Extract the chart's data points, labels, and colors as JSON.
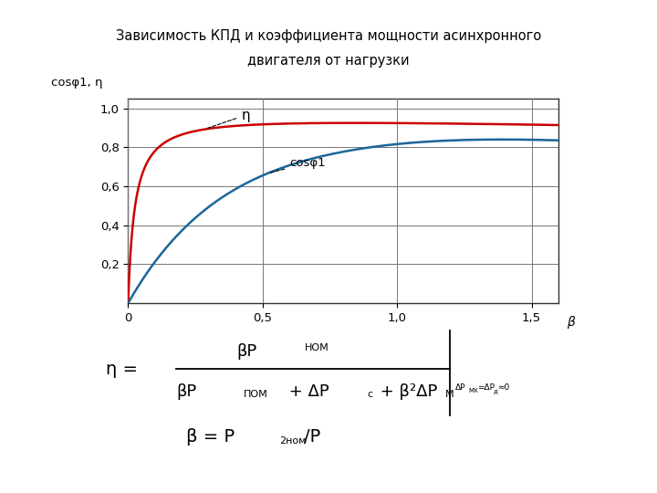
{
  "title_line1": "Зависимость КПД и коэффициента мощности асинхронного",
  "title_line2": "двигателя от нагрузки",
  "ylabel": "cosφ1, η",
  "xlabel": "β",
  "xlim": [
    0,
    1.6
  ],
  "ylim": [
    0,
    1.05
  ],
  "xtick_vals": [
    0,
    0.5,
    1.0,
    1.5
  ],
  "xtick_labels": [
    "0",
    "0,5",
    "1,0",
    "1,5"
  ],
  "ytick_vals": [
    0.2,
    0.4,
    0.6,
    0.8,
    1.0
  ],
  "ytick_labels": [
    "0,2",
    "0,4",
    "0,6",
    "0,8",
    "1,0"
  ],
  "eta_color": "#cc0000",
  "cos_color": "#1a6699",
  "title_bg": "#c8dce8",
  "title_border": "#7799aa",
  "grid_color": "#777777",
  "spine_color": "#333333"
}
